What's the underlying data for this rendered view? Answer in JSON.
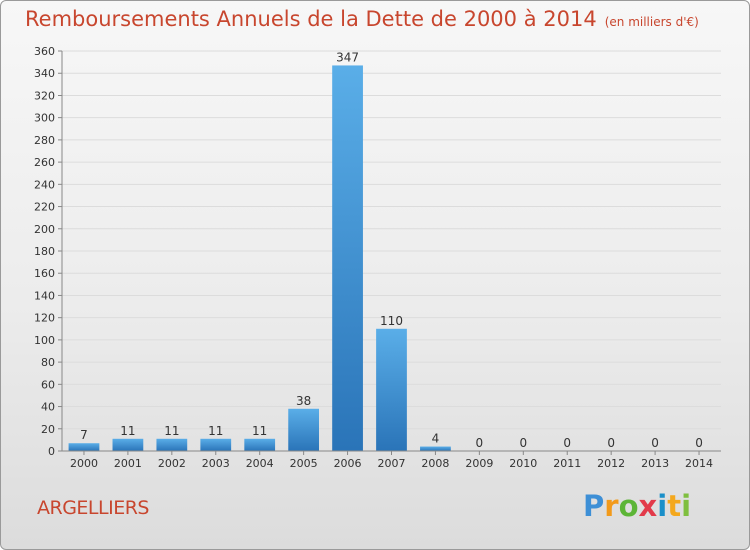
{
  "header": {
    "title": "Remboursements Annuels de la Dette de 2000 à 2014",
    "unit": "(en milliers d'€)"
  },
  "footer": {
    "town": "ARGELLIERS",
    "logo": [
      "P",
      "r",
      "o",
      "x",
      "i",
      "t",
      "i"
    ]
  },
  "colors": {
    "title": "#c8462e",
    "bar_top": "#5aaee8",
    "bar_bottom": "#2a74b8"
  },
  "chart_data": {
    "type": "bar",
    "title": "Remboursements Annuels de la Dette de 2000 à 2014",
    "xlabel": "",
    "ylabel": "",
    "categories": [
      "2000",
      "2001",
      "2002",
      "2003",
      "2004",
      "2005",
      "2006",
      "2007",
      "2008",
      "2009",
      "2010",
      "2011",
      "2012",
      "2013",
      "2014"
    ],
    "values": [
      7,
      11,
      11,
      11,
      11,
      38,
      347,
      110,
      4,
      0,
      0,
      0,
      0,
      0,
      0
    ],
    "ylim": [
      0,
      360
    ],
    "yticks": [
      0,
      20,
      40,
      60,
      80,
      100,
      120,
      140,
      160,
      180,
      200,
      220,
      240,
      260,
      280,
      300,
      320,
      340,
      360
    ],
    "grid": true
  }
}
